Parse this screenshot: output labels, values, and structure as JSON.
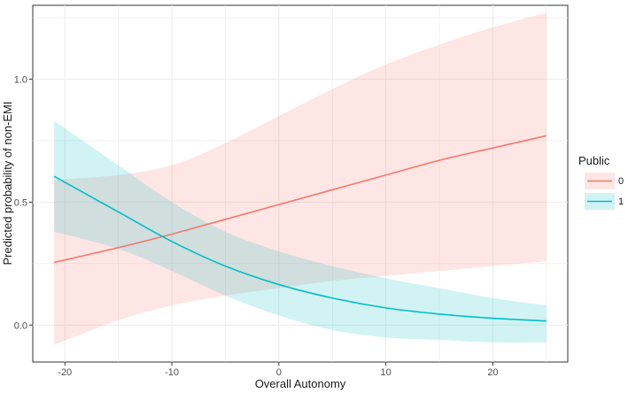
{
  "chart_data": {
    "type": "line",
    "xlabel": "Overall Autonomy",
    "ylabel": "Predicted probability of non-EMI",
    "xlim": [
      -23,
      27
    ],
    "ylim": [
      -0.15,
      1.3
    ],
    "x_ticks": [
      -20,
      -10,
      0,
      10,
      20
    ],
    "y_ticks": [
      0.0,
      0.5,
      1.0
    ],
    "x_tick_labels": [
      "-20",
      "-10",
      "0",
      "10",
      "20"
    ],
    "y_tick_labels": [
      "0.0",
      "0.5",
      "1.0"
    ],
    "grid": true,
    "legend": {
      "title": "Public",
      "position": "right"
    },
    "series": [
      {
        "name": "0",
        "color": "#F8766D",
        "x": [
          -21,
          -15,
          -10,
          -5,
          0,
          5,
          10,
          15,
          20,
          25
        ],
        "y": [
          0.255,
          0.315,
          0.37,
          0.43,
          0.49,
          0.55,
          0.61,
          0.67,
          0.72,
          0.77
        ],
        "lower": [
          -0.08,
          0.02,
          0.08,
          0.12,
          0.15,
          0.18,
          0.2,
          0.22,
          0.24,
          0.26
        ],
        "upper": [
          0.59,
          0.61,
          0.65,
          0.74,
          0.85,
          0.96,
          1.06,
          1.14,
          1.21,
          1.27
        ]
      },
      {
        "name": "1",
        "color": "#00BFC4",
        "x": [
          -21,
          -15,
          -10,
          -5,
          0,
          5,
          10,
          15,
          20,
          25
        ],
        "y": [
          0.605,
          0.46,
          0.34,
          0.24,
          0.165,
          0.11,
          0.07,
          0.045,
          0.028,
          0.017
        ],
        "lower": [
          0.38,
          0.31,
          0.22,
          0.12,
          0.04,
          -0.02,
          -0.05,
          -0.06,
          -0.07,
          -0.07
        ],
        "upper": [
          0.83,
          0.65,
          0.5,
          0.38,
          0.3,
          0.24,
          0.19,
          0.15,
          0.11,
          0.08
        ]
      }
    ]
  }
}
